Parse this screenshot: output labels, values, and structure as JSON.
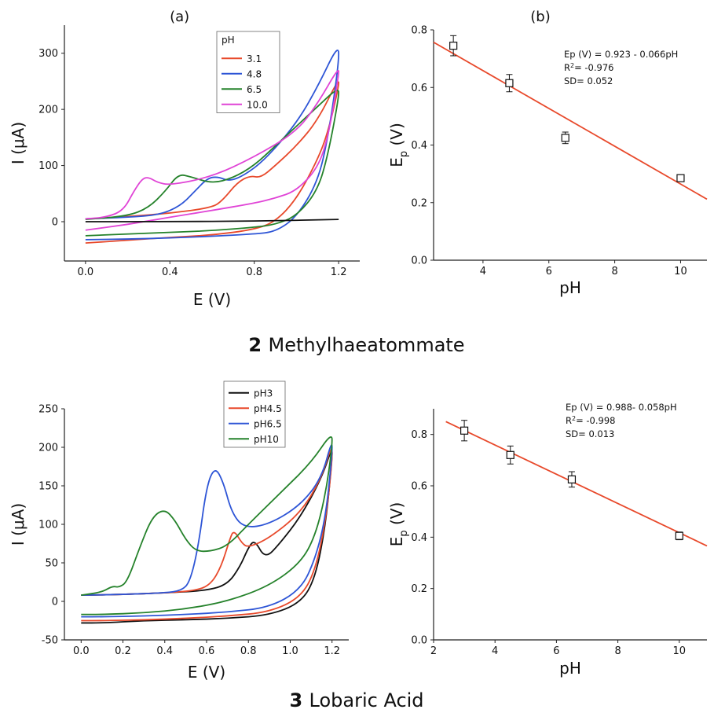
{
  "compounds": [
    {
      "number": "2",
      "name": "Methylhaeatommate"
    },
    {
      "number": "3",
      "name": "Lobaric Acid"
    }
  ],
  "chart_data": [
    {
      "id": "cv2",
      "type": "line",
      "panel_label": "(a)",
      "xlabel": "E (V)",
      "ylabel": "I (μA)",
      "xlim": [
        -0.1,
        1.3
      ],
      "ylim": [
        -70,
        350
      ],
      "xticks": [
        0.0,
        0.4,
        0.8,
        1.2
      ],
      "xtick_labels": [
        "0.0",
        "0.4",
        "0.8",
        "1.2"
      ],
      "yticks": [
        0,
        100,
        200,
        300
      ],
      "ytick_labels": [
        "0",
        "100",
        "200",
        "300"
      ],
      "legend_title": "pH",
      "legend_position": "top-right",
      "series": [
        {
          "name": "3.1",
          "color": "#e8492b",
          "x": [
            0.0,
            0.2,
            0.4,
            0.6,
            0.65,
            0.72,
            0.78,
            0.83,
            0.9,
            1.0,
            1.1,
            1.2,
            1.2,
            1.15,
            1.1,
            1.0,
            0.9,
            0.8,
            0.6,
            0.4,
            0.2,
            0.0
          ],
          "y": [
            5,
            9,
            15,
            25,
            38,
            70,
            82,
            78,
            100,
            135,
            180,
            255,
            240,
            160,
            110,
            40,
            0,
            -14,
            -24,
            -28,
            -33,
            -38
          ]
        },
        {
          "name": "4.8",
          "color": "#2e55d6",
          "x": [
            0.0,
            0.2,
            0.35,
            0.45,
            0.52,
            0.58,
            0.63,
            0.68,
            0.75,
            0.85,
            1.0,
            1.1,
            1.2,
            1.2,
            1.15,
            1.1,
            1.0,
            0.9,
            0.8,
            0.6,
            0.4,
            0.2,
            0.0
          ],
          "y": [
            5,
            8,
            12,
            28,
            55,
            78,
            80,
            72,
            82,
            110,
            175,
            240,
            318,
            280,
            150,
            70,
            8,
            -18,
            -22,
            -26,
            -29,
            -31,
            -32
          ]
        },
        {
          "name": "6.5",
          "color": "#25822b",
          "x": [
            0.0,
            0.2,
            0.3,
            0.38,
            0.44,
            0.5,
            0.6,
            0.7,
            0.8,
            0.9,
            1.0,
            1.1,
            1.2,
            1.2,
            1.15,
            1.1,
            1.0,
            0.9,
            0.8,
            0.6,
            0.4,
            0.2,
            0.0
          ],
          "y": [
            4,
            10,
            25,
            55,
            85,
            80,
            68,
            78,
            100,
            135,
            170,
            205,
            240,
            220,
            120,
            55,
            10,
            -5,
            -10,
            -16,
            -19,
            -22,
            -25
          ]
        },
        {
          "name": "10.0",
          "color": "#e044d6",
          "x": [
            0.0,
            0.1,
            0.18,
            0.23,
            0.27,
            0.3,
            0.34,
            0.4,
            0.6,
            0.8,
            1.0,
            1.1,
            1.2,
            1.2,
            1.15,
            1.1,
            1.0,
            0.9,
            0.8,
            0.6,
            0.4,
            0.2,
            0.0
          ],
          "y": [
            5,
            8,
            20,
            55,
            77,
            79,
            70,
            65,
            80,
            115,
            160,
            210,
            275,
            260,
            150,
            95,
            55,
            42,
            33,
            20,
            8,
            -5,
            -15
          ]
        },
        {
          "name": "",
          "color": "#111111",
          "x": [
            0.0,
            0.4,
            0.8,
            1.2
          ],
          "y": [
            0,
            0,
            1,
            4
          ]
        }
      ]
    },
    {
      "id": "fit2",
      "type": "scatter",
      "panel_label": "(b)",
      "xlabel": "pH",
      "ylabel": "E",
      "ylabel_sub": "p",
      "ylabel_unit": "(V)",
      "xlim": [
        2.5,
        10.8
      ],
      "ylim": [
        0,
        0.8
      ],
      "xticks": [
        4,
        6,
        8,
        10
      ],
      "xtick_labels": [
        "4",
        "6",
        "8",
        "10"
      ],
      "yticks": [
        0.0,
        0.2,
        0.4,
        0.6,
        0.8
      ],
      "ytick_labels": [
        "0.0",
        "0.2",
        "0.4",
        "0.6",
        "0.8"
      ],
      "points": [
        {
          "x": 3.1,
          "y": 0.745,
          "err": 0.035
        },
        {
          "x": 4.8,
          "y": 0.615,
          "err": 0.03
        },
        {
          "x": 6.5,
          "y": 0.425,
          "err": 0.02
        },
        {
          "x": 10.0,
          "y": 0.285,
          "err": 0.012
        }
      ],
      "fit": {
        "x": [
          2.5,
          10.8
        ],
        "y": [
          0.757,
          0.212
        ],
        "color": "#e8492b"
      },
      "annotations": [
        "Ep (V) = 0.923 - 0.066pH",
        "R²= -0.976",
        "SD= 0.052"
      ]
    },
    {
      "id": "cv3",
      "type": "line",
      "xlabel": "E (V)",
      "ylabel": "I (μA)",
      "xlim": [
        -0.08,
        1.28
      ],
      "ylim": [
        -50,
        250
      ],
      "xticks": [
        0.0,
        0.2,
        0.4,
        0.6,
        0.8,
        1.0,
        1.2
      ],
      "xtick_labels": [
        "0.0",
        "0.2",
        "0.4",
        "0.6",
        "0.8",
        "1.0",
        "1.2"
      ],
      "yticks": [
        -50,
        0,
        50,
        100,
        150,
        200,
        250
      ],
      "ytick_labels": [
        "-50",
        "0",
        "50",
        "100",
        "150",
        "200",
        "250"
      ],
      "legend_position": "top-center",
      "series": [
        {
          "name": "pH3",
          "color": "#111111",
          "x": [
            0.0,
            0.2,
            0.4,
            0.6,
            0.7,
            0.76,
            0.8,
            0.83,
            0.88,
            0.95,
            1.05,
            1.15,
            1.2,
            1.2,
            1.17,
            1.12,
            1.05,
            0.9,
            0.7,
            0.5,
            0.3,
            0.1,
            0.0
          ],
          "y": [
            8,
            9,
            11,
            14,
            22,
            45,
            70,
            80,
            55,
            75,
            110,
            160,
            200,
            185,
            100,
            30,
            -2,
            -18,
            -22,
            -24,
            -25,
            -28,
            -28
          ]
        },
        {
          "name": "pH4.5",
          "color": "#e8492b",
          "x": [
            0.0,
            0.2,
            0.4,
            0.55,
            0.62,
            0.67,
            0.71,
            0.73,
            0.77,
            0.8,
            0.9,
            1.05,
            1.15,
            1.2,
            1.2,
            1.17,
            1.12,
            1.05,
            0.9,
            0.7,
            0.5,
            0.3,
            0.1,
            0.0
          ],
          "y": [
            8,
            9,
            11,
            14,
            22,
            45,
            80,
            93,
            75,
            70,
            82,
            115,
            160,
            205,
            180,
            105,
            40,
            5,
            -14,
            -19,
            -22,
            -24,
            -25,
            -25
          ]
        },
        {
          "name": "pH6.5",
          "color": "#2e55d6",
          "x": [
            0.0,
            0.2,
            0.4,
            0.48,
            0.52,
            0.56,
            0.6,
            0.64,
            0.68,
            0.72,
            0.78,
            0.9,
            1.05,
            1.15,
            1.2,
            1.2,
            1.17,
            1.12,
            1.05,
            0.9,
            0.7,
            0.5,
            0.3,
            0.1,
            0.0
          ],
          "y": [
            8,
            9,
            11,
            14,
            25,
            70,
            150,
            175,
            155,
            115,
            95,
            100,
            125,
            160,
            210,
            190,
            110,
            55,
            15,
            -8,
            -14,
            -17,
            -19,
            -20,
            -20
          ]
        },
        {
          "name": "pH10",
          "color": "#25822b",
          "x": [
            0.0,
            0.1,
            0.15,
            0.18,
            0.22,
            0.28,
            0.34,
            0.4,
            0.45,
            0.5,
            0.55,
            0.62,
            0.7,
            0.8,
            0.95,
            1.1,
            1.2,
            1.2,
            1.17,
            1.12,
            1.05,
            0.9,
            0.7,
            0.5,
            0.3,
            0.1,
            0.0
          ],
          "y": [
            8,
            12,
            20,
            18,
            25,
            70,
            110,
            120,
            105,
            80,
            65,
            65,
            72,
            100,
            140,
            180,
            220,
            200,
            140,
            85,
            50,
            20,
            0,
            -10,
            -15,
            -17,
            -17
          ]
        }
      ]
    },
    {
      "id": "fit3",
      "type": "scatter",
      "xlabel": "pH",
      "ylabel": "E",
      "ylabel_sub": "p",
      "ylabel_unit": "(V)",
      "xlim": [
        2,
        10.9
      ],
      "ylim": [
        0,
        0.9
      ],
      "xticks": [
        2,
        4,
        6,
        8,
        10
      ],
      "xtick_labels": [
        "2",
        "4",
        "6",
        "8",
        "10"
      ],
      "yticks": [
        0.0,
        0.2,
        0.4,
        0.6,
        0.8
      ],
      "ytick_labels": [
        "0.0",
        "0.2",
        "0.4",
        "0.6",
        "0.8"
      ],
      "points": [
        {
          "x": 3.0,
          "y": 0.815,
          "err": 0.04
        },
        {
          "x": 4.5,
          "y": 0.72,
          "err": 0.035
        },
        {
          "x": 6.5,
          "y": 0.625,
          "err": 0.03
        },
        {
          "x": 10.0,
          "y": 0.405,
          "err": 0.015
        }
      ],
      "fit": {
        "x": [
          2.4,
          10.9
        ],
        "y": [
          0.85,
          0.366
        ],
        "color": "#e8492b"
      },
      "annotations": [
        "Ep (V) = 0.988- 0.058pH",
        "R²= -0.998",
        "SD= 0.013"
      ]
    }
  ]
}
